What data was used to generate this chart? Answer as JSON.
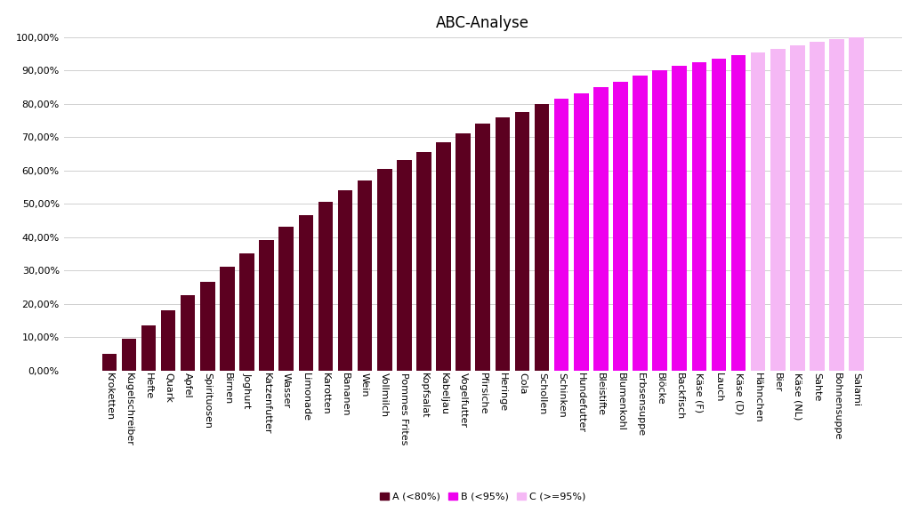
{
  "title": "ABC-Analyse",
  "categories": [
    "Kroketten",
    "Kugelschreiber",
    "Hefte",
    "Quark",
    "Apfel",
    "Spirituosen",
    "Birnen",
    "Joghurt",
    "Katzenfutter",
    "Wasser",
    "Limonade",
    "Karotten",
    "Bananen",
    "Wein",
    "Vollmilch",
    "Pommes Frites",
    "Kopfsalat",
    "Kabeljau",
    "Vogelfutter",
    "Pfirsiche",
    "Heringe",
    "Cola",
    "Schollen",
    "Schinken",
    "Hundefutter",
    "Bleistifte",
    "Blumenkohl",
    "Erbsensuppe",
    "Blöcke",
    "Backfisch",
    "Käse (F)",
    "Lauch",
    "Käse (D)",
    "Hähnchen",
    "Bier",
    "Käse (NL)",
    "Sahte",
    "Bohnensuppe",
    "Salami"
  ],
  "values": [
    5.0,
    9.5,
    13.5,
    18.0,
    22.5,
    26.5,
    31.0,
    35.0,
    39.0,
    43.0,
    46.5,
    50.5,
    54.0,
    57.0,
    60.5,
    63.0,
    65.5,
    68.5,
    71.0,
    74.0,
    76.0,
    77.5,
    80.0,
    81.5,
    83.0,
    85.0,
    86.5,
    88.5,
    90.0,
    91.5,
    92.5,
    93.5,
    94.5,
    95.5,
    96.5,
    97.5,
    98.5,
    99.5,
    100.0
  ],
  "color_A": "#5c0020",
  "color_B": "#ee00ee",
  "color_C": "#f5b8f5",
  "threshold_A": 80.0,
  "threshold_B": 95.0,
  "legend_labels": [
    "A (<80%)",
    "B (<95%)",
    "C (>=95%)"
  ],
  "background_color": "#ffffff",
  "grid_color": "#d0d0d0",
  "title_fontsize": 12,
  "tick_fontsize": 8,
  "label_fontsize": 8
}
